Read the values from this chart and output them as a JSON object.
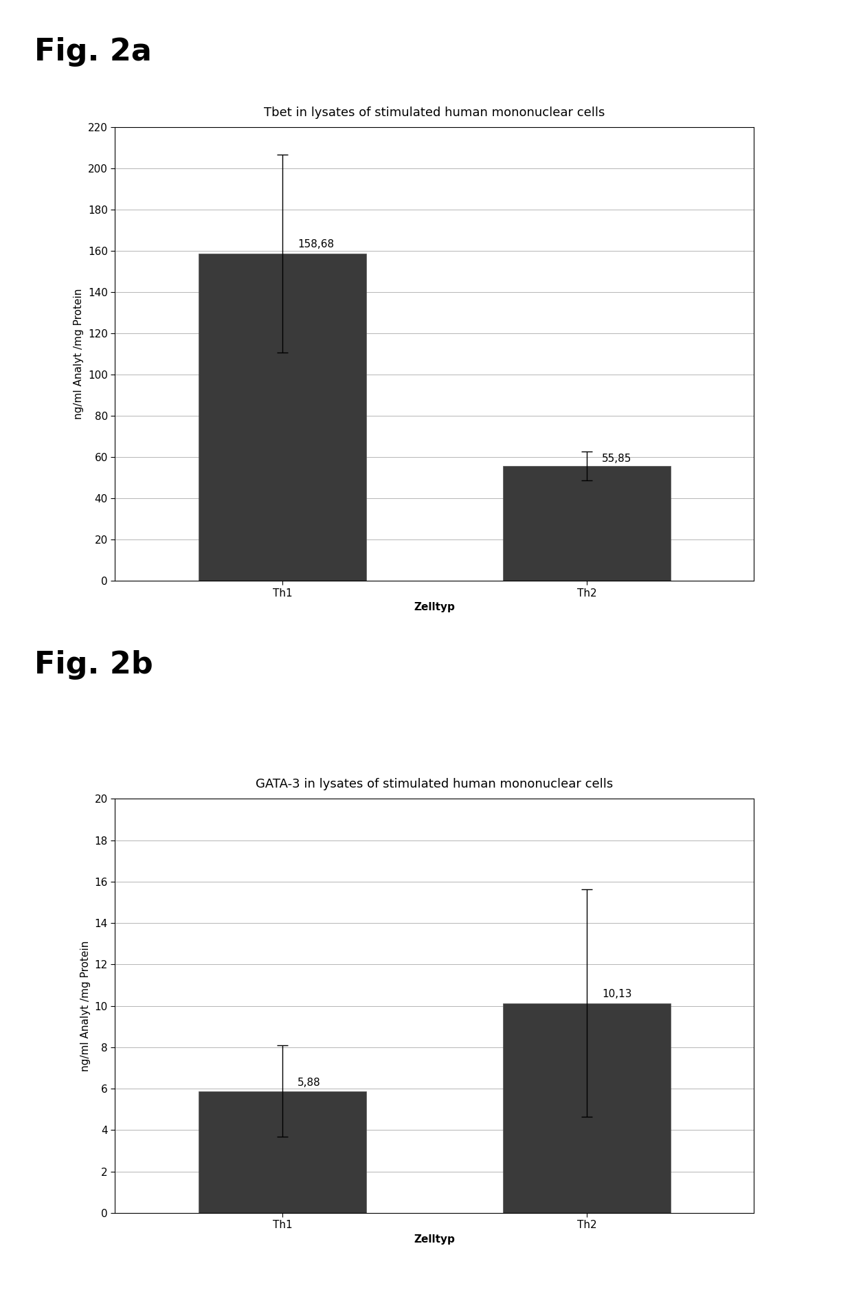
{
  "fig_a_label": "Fig. 2a",
  "fig_b_label": "Fig. 2b",
  "chart_a": {
    "title": "Tbet in lysates of stimulated human mononuclear cells",
    "categories": [
      "Th1",
      "Th2"
    ],
    "values": [
      158.68,
      55.85
    ],
    "errors": [
      48.0,
      7.0
    ],
    "value_labels": [
      "158,68",
      "55,85"
    ],
    "ylabel": "ng/ml Analyt /mg Protein",
    "xlabel": "Zelltyp",
    "ylim": [
      0,
      220
    ],
    "yticks": [
      0,
      20,
      40,
      60,
      80,
      100,
      120,
      140,
      160,
      180,
      200,
      220
    ],
    "bar_color": "#3a3a3a",
    "bar_width": 0.55
  },
  "chart_b": {
    "title": "GATA-3 in lysates of stimulated human mononuclear cells",
    "categories": [
      "Th1",
      "Th2"
    ],
    "values": [
      5.88,
      10.13
    ],
    "errors": [
      2.2,
      5.5
    ],
    "value_labels": [
      "5,88",
      "10,13"
    ],
    "ylabel": "ng/ml Analyt /mg Protein",
    "xlabel": "Zelltyp",
    "ylim": [
      0,
      20
    ],
    "yticks": [
      0,
      2,
      4,
      6,
      8,
      10,
      12,
      14,
      16,
      18,
      20
    ],
    "bar_color": "#3a3a3a",
    "bar_width": 0.55
  },
  "background_color": "#ffffff",
  "fig_label_fontsize": 32,
  "title_fontsize": 13,
  "axis_label_fontsize": 11,
  "tick_fontsize": 11,
  "value_label_fontsize": 11
}
